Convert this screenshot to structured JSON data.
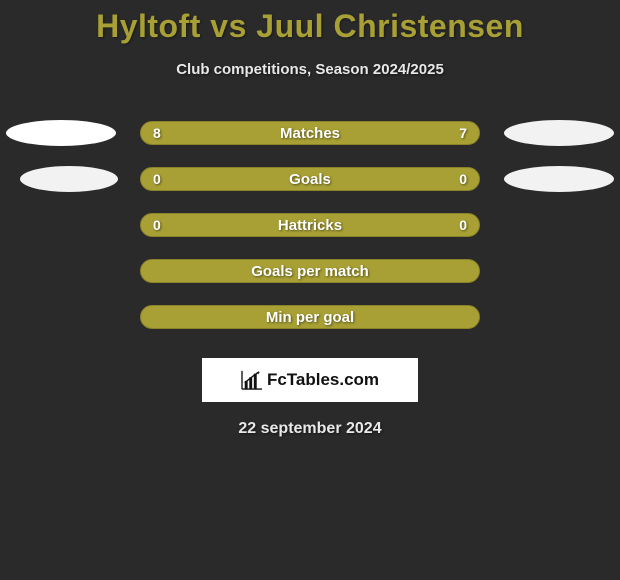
{
  "title": "Hyltoft vs Juul Christensen",
  "subtitle": "Club competitions, Season 2024/2025",
  "date": "22 september 2024",
  "logo_text": "FcTables.com",
  "colors": {
    "background": "#2a2a2a",
    "accent": "#a8a035",
    "bar_fill": "#a8a035",
    "bar_border": "#8a8328",
    "ellipse_left": "#ffffff",
    "ellipse_right": "#f2f2f2",
    "text_light": "#e8e8e8"
  },
  "font": {
    "title_size": 32,
    "subtitle_size": 15,
    "label_size": 15,
    "value_size": 14,
    "date_size": 16
  },
  "rows": [
    {
      "label": "Matches",
      "left": "8",
      "right": "7",
      "show_ellipse": true,
      "ellipse_left_color": "#ffffff",
      "ellipse_right_color": "#f2f2f2"
    },
    {
      "label": "Goals",
      "left": "0",
      "right": "0",
      "show_ellipse": true,
      "ellipse_left_color": "#f2f2f2",
      "ellipse_right_color": "#f2f2f2"
    },
    {
      "label": "Hattricks",
      "left": "0",
      "right": "0",
      "show_ellipse": false
    },
    {
      "label": "Goals per match",
      "left": "",
      "right": "",
      "show_ellipse": false
    },
    {
      "label": "Min per goal",
      "left": "",
      "right": "",
      "show_ellipse": false
    }
  ]
}
